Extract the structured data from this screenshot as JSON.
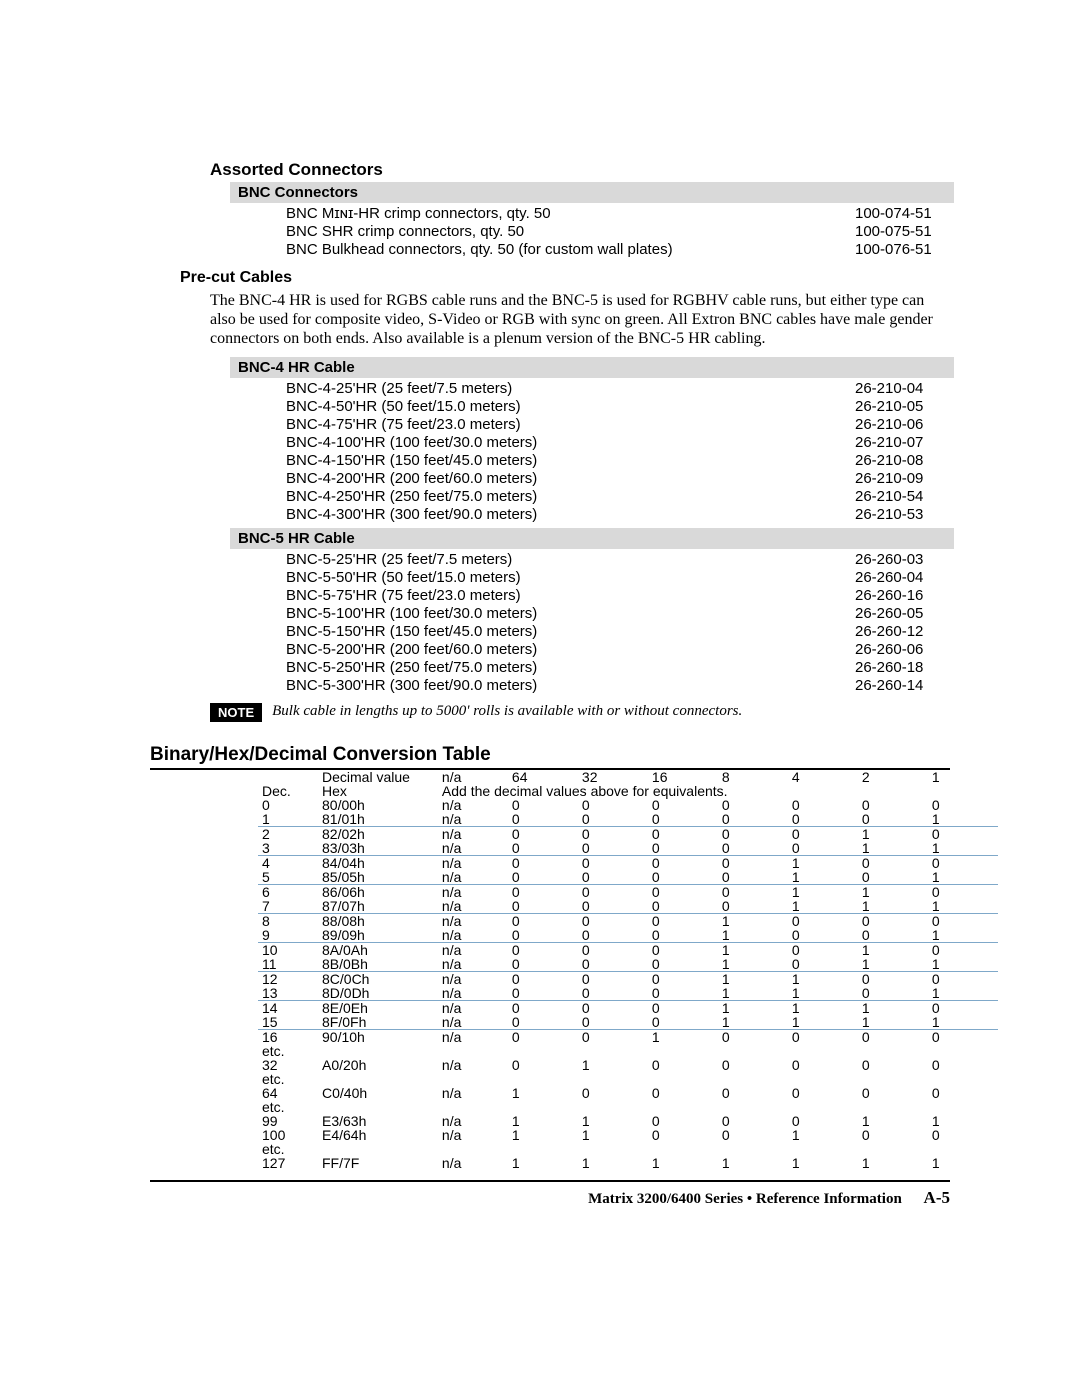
{
  "assorted": {
    "title": "Assorted Connectors",
    "bnc_connectors": {
      "title": "BNC Connectors",
      "items": [
        {
          "desc": "BNC Mɪɴɪ-HR crimp connectors, qty. 50",
          "part": "100-074-51"
        },
        {
          "desc": "BNC SHR crimp connectors, qty. 50",
          "part": "100-075-51"
        },
        {
          "desc": "BNC Bulkhead connectors, qty. 50 (for custom wall plates)",
          "part": "100-076-51"
        }
      ]
    },
    "precut": {
      "title": "Pre-cut Cables",
      "body": "The BNC-4 HR is used for RGBS cable runs and the BNC-5 is used for RGBHV cable runs, but either type can also be used for composite video, S-Video or RGB with sync on green. All Extron BNC cables have male gender connectors on both ends. Also available is a plenum version of the BNC-5 HR cabling.",
      "bnc4": {
        "title": "BNC-4 HR Cable",
        "items": [
          {
            "desc": "BNC-4-25'HR (25 feet/7.5 meters)",
            "part": "26-210-04"
          },
          {
            "desc": "BNC-4-50'HR (50 feet/15.0 meters)",
            "part": "26-210-05"
          },
          {
            "desc": "BNC-4-75'HR (75 feet/23.0 meters)",
            "part": "26-210-06"
          },
          {
            "desc": "BNC-4-100'HR (100 feet/30.0 meters)",
            "part": "26-210-07"
          },
          {
            "desc": "BNC-4-150'HR (150 feet/45.0 meters)",
            "part": "26-210-08"
          },
          {
            "desc": "BNC-4-200'HR (200 feet/60.0 meters)",
            "part": "26-210-09"
          },
          {
            "desc": "BNC-4-250'HR (250 feet/75.0 meters)",
            "part": "26-210-54"
          },
          {
            "desc": "BNC-4-300'HR (300 feet/90.0 meters)",
            "part": "26-210-53"
          }
        ]
      },
      "bnc5": {
        "title": "BNC-5 HR Cable",
        "items": [
          {
            "desc": "BNC-5-25'HR (25 feet/7.5 meters)",
            "part": "26-260-03"
          },
          {
            "desc": "BNC-5-50'HR (50 feet/15.0 meters)",
            "part": "26-260-04"
          },
          {
            "desc": "BNC-5-75'HR (75 feet/23.0 meters)",
            "part": "26-260-16"
          },
          {
            "desc": "BNC-5-100'HR (100 feet/30.0 meters)",
            "part": "26-260-05"
          },
          {
            "desc": "BNC-5-150'HR (150 feet/45.0 meters)",
            "part": "26-260-12"
          },
          {
            "desc": "BNC-5-200'HR (200 feet/60.0 meters)",
            "part": "26-260-06"
          },
          {
            "desc": "BNC-5-250'HR (250 feet/75.0 meters)",
            "part": "26-260-18"
          },
          {
            "desc": "BNC-5-300'HR (300 feet/90.0 meters)",
            "part": "26-260-14"
          }
        ]
      },
      "note_label": "NOTE",
      "note_text": "Bulk cable in lengths up to 5000' rolls is available with or without connectors."
    }
  },
  "conversion": {
    "title": "Binary/Hex/Decimal Conversion Table",
    "header_row1": [
      "",
      "Decimal value",
      "n/a",
      "64",
      "32",
      "16",
      "8",
      "4",
      "2",
      "1"
    ],
    "header_row2": [
      "Dec.",
      "Hex",
      "Add the decimal values above for equivalents."
    ],
    "rows": [
      {
        "dec": "0",
        "hex": "80/00h",
        "na": "n/a",
        "b": [
          "0",
          "0",
          "0",
          "0",
          "0",
          "0",
          "0"
        ],
        "sep": false
      },
      {
        "dec": "1",
        "hex": "81/01h",
        "na": "n/a",
        "b": [
          "0",
          "0",
          "0",
          "0",
          "0",
          "0",
          "1"
        ],
        "sep": true
      },
      {
        "dec": "2",
        "hex": "82/02h",
        "na": "n/a",
        "b": [
          "0",
          "0",
          "0",
          "0",
          "0",
          "1",
          "0"
        ],
        "sep": false
      },
      {
        "dec": "3",
        "hex": "83/03h",
        "na": "n/a",
        "b": [
          "0",
          "0",
          "0",
          "0",
          "0",
          "1",
          "1"
        ],
        "sep": true
      },
      {
        "dec": "4",
        "hex": "84/04h",
        "na": "n/a",
        "b": [
          "0",
          "0",
          "0",
          "0",
          "1",
          "0",
          "0"
        ],
        "sep": false
      },
      {
        "dec": "5",
        "hex": "85/05h",
        "na": "n/a",
        "b": [
          "0",
          "0",
          "0",
          "0",
          "1",
          "0",
          "1"
        ],
        "sep": true
      },
      {
        "dec": "6",
        "hex": "86/06h",
        "na": "n/a",
        "b": [
          "0",
          "0",
          "0",
          "0",
          "1",
          "1",
          "0"
        ],
        "sep": false
      },
      {
        "dec": "7",
        "hex": "87/07h",
        "na": "n/a",
        "b": [
          "0",
          "0",
          "0",
          "0",
          "1",
          "1",
          "1"
        ],
        "sep": true
      },
      {
        "dec": "8",
        "hex": "88/08h",
        "na": "n/a",
        "b": [
          "0",
          "0",
          "0",
          "1",
          "0",
          "0",
          "0"
        ],
        "sep": false
      },
      {
        "dec": "9",
        "hex": "89/09h",
        "na": "n/a",
        "b": [
          "0",
          "0",
          "0",
          "1",
          "0",
          "0",
          "1"
        ],
        "sep": true
      },
      {
        "dec": "10",
        "hex": "8A/0Ah",
        "na": "n/a",
        "b": [
          "0",
          "0",
          "0",
          "1",
          "0",
          "1",
          "0"
        ],
        "sep": false
      },
      {
        "dec": "11",
        "hex": "8B/0Bh",
        "na": "n/a",
        "b": [
          "0",
          "0",
          "0",
          "1",
          "0",
          "1",
          "1"
        ],
        "sep": true
      },
      {
        "dec": "12",
        "hex": "8C/0Ch",
        "na": "n/a",
        "b": [
          "0",
          "0",
          "0",
          "1",
          "1",
          "0",
          "0"
        ],
        "sep": false
      },
      {
        "dec": "13",
        "hex": "8D/0Dh",
        "na": "n/a",
        "b": [
          "0",
          "0",
          "0",
          "1",
          "1",
          "0",
          "1"
        ],
        "sep": true
      },
      {
        "dec": "14",
        "hex": "8E/0Eh",
        "na": "n/a",
        "b": [
          "0",
          "0",
          "0",
          "1",
          "1",
          "1",
          "0"
        ],
        "sep": false
      },
      {
        "dec": "15",
        "hex": "8F/0Fh",
        "na": "n/a",
        "b": [
          "0",
          "0",
          "0",
          "1",
          "1",
          "1",
          "1"
        ],
        "sep": true
      },
      {
        "dec": "16",
        "hex": "90/10h",
        "na": "n/a",
        "b": [
          "0",
          "0",
          "1",
          "0",
          "0",
          "0",
          "0"
        ],
        "sep": false,
        "etc": true
      },
      {
        "dec": "32",
        "hex": "A0/20h",
        "na": "n/a",
        "b": [
          "0",
          "1",
          "0",
          "0",
          "0",
          "0",
          "0"
        ],
        "sep": false,
        "etc": true
      },
      {
        "dec": "64",
        "hex": "C0/40h",
        "na": "n/a",
        "b": [
          "1",
          "0",
          "0",
          "0",
          "0",
          "0",
          "0"
        ],
        "sep": false,
        "etc": true
      },
      {
        "dec": "99",
        "hex": "E3/63h",
        "na": "n/a",
        "b": [
          "1",
          "1",
          "0",
          "0",
          "0",
          "1",
          "1"
        ],
        "sep": false
      },
      {
        "dec": "100",
        "hex": "E4/64h",
        "na": "n/a",
        "b": [
          "1",
          "1",
          "0",
          "0",
          "1",
          "0",
          "0"
        ],
        "sep": false,
        "etc": true
      },
      {
        "dec": "127",
        "hex": "FF/7F",
        "na": "n/a",
        "b": [
          "1",
          "1",
          "1",
          "1",
          "1",
          "1",
          "1"
        ],
        "sep": false
      }
    ],
    "etc_label": "etc."
  },
  "footer": {
    "text": "Matrix 3200/6400 Series • Reference Information",
    "page": "A-5"
  }
}
